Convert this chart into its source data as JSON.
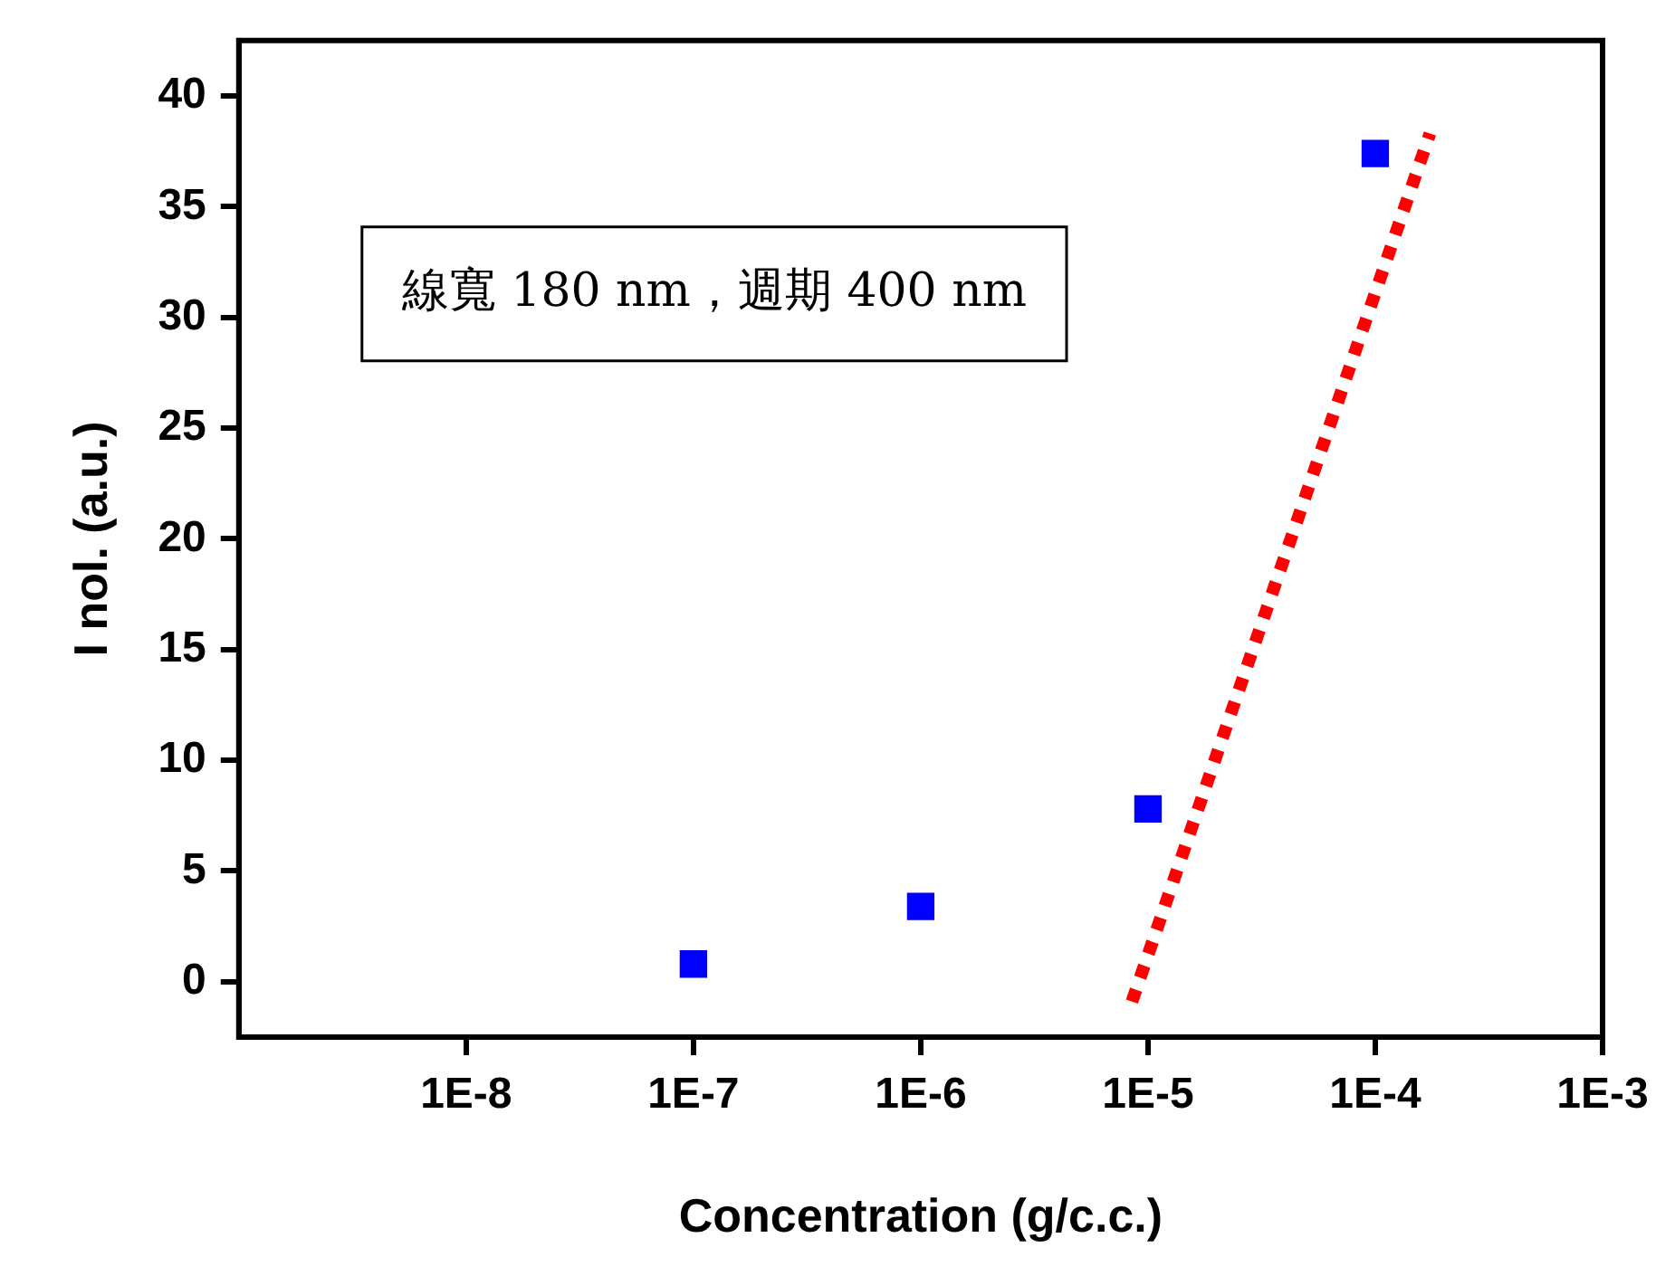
{
  "chart_data": {
    "type": "scatter",
    "xlabel": "Concentration (g/c.c.)",
    "ylabel": "I nol. (a.u.)",
    "annotations": [
      "線寬 180 nm，週期 400 nm"
    ],
    "log": "x",
    "grid": false,
    "legend": false,
    "xlim": [
      1e-09,
      0.001
    ],
    "ylim": [
      -2.5,
      42.5
    ],
    "xticks": [
      {
        "value": 1e-08,
        "label": "1E-8"
      },
      {
        "value": 1e-07,
        "label": "1E-7"
      },
      {
        "value": 1e-06,
        "label": "1E-6"
      },
      {
        "value": 1e-05,
        "label": "1E-5"
      },
      {
        "value": 0.0001,
        "label": "1E-4"
      },
      {
        "value": 0.001,
        "label": "1E-3"
      }
    ],
    "yticks": [
      0,
      5,
      10,
      15,
      20,
      25,
      30,
      35,
      40
    ],
    "series": [
      {
        "type": "scatter",
        "color": "#0000ff",
        "marker": "square",
        "x": [
          1e-07,
          1e-06,
          1e-05,
          0.0001
        ],
        "values": [
          0.8,
          3.4,
          7.8,
          37.4
        ]
      },
      {
        "type": "line",
        "color": "#ff0000",
        "marker": "none",
        "line_style": "dotted",
        "x": [
          8.5e-06,
          0.000174
        ],
        "values": [
          -0.9,
          38.3
        ]
      }
    ]
  }
}
